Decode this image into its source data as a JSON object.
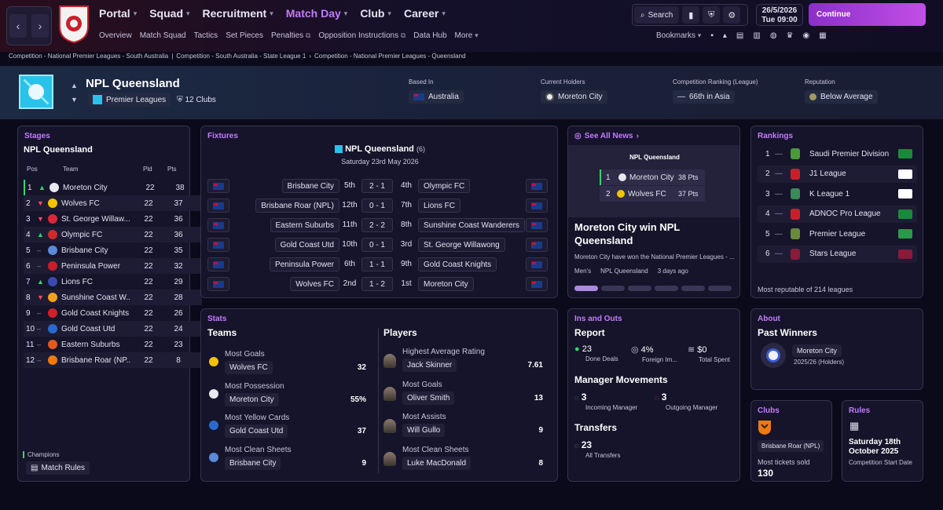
{
  "nav": {
    "back": "‹",
    "forward": "›",
    "main": [
      "Portal",
      "Squad",
      "Recruitment",
      "Match Day",
      "Club",
      "Career"
    ],
    "active": "Match Day",
    "sub": [
      "Overview",
      "Match Squad",
      "Tactics",
      "Set Pieces",
      "Penalties",
      "Opposition Instructions",
      "Data Hub",
      "More"
    ],
    "search_label": "Search",
    "date": "26/5/2026",
    "day_time": "Tue",
    "time": "09:00",
    "continue_label": "Continue",
    "bookmarks_label": "Bookmarks"
  },
  "breadcrumb": [
    "Competition - National Premier Leagues - South Australia",
    "Competition - South Australia - State League 1",
    "Competition - National Premier Leagues - Queensland"
  ],
  "header": {
    "name": "NPL Queensland",
    "type": "Premier Leagues",
    "clubs": "12 Clubs",
    "based_in_label": "Based In",
    "based_in": "Australia",
    "holders_label": "Current Holders",
    "holders": "Moreton City",
    "ranking_label": "Competition Ranking (League)",
    "ranking": "66th in Asia",
    "reputation_label": "Reputation",
    "reputation": "Below Average",
    "ranking_dash": "—"
  },
  "stages": {
    "title": "Stages",
    "league": "NPL Queensland",
    "cols": {
      "pos": "Pos",
      "team": "Team",
      "pld": "Pld",
      "pts": "Pts"
    },
    "rows": [
      {
        "pos": "1",
        "move": "up",
        "team": "Moreton City",
        "pld": "22",
        "pts": "38",
        "color": "#e8e8f0"
      },
      {
        "pos": "2",
        "move": "down",
        "team": "Wolves FC",
        "pld": "22",
        "pts": "37",
        "color": "#f2c400"
      },
      {
        "pos": "3",
        "move": "down",
        "team": "St. George Willaw...",
        "pld": "22",
        "pts": "36",
        "color": "#d8283a"
      },
      {
        "pos": "4",
        "move": "up",
        "team": "Olympic FC",
        "pld": "22",
        "pts": "36",
        "color": "#cf2a2a"
      },
      {
        "pos": "5",
        "move": "same",
        "team": "Brisbane City",
        "pld": "22",
        "pts": "35",
        "color": "#5a8ad8"
      },
      {
        "pos": "6",
        "move": "same",
        "team": "Peninsula Power",
        "pld": "22",
        "pts": "32",
        "color": "#c8202a"
      },
      {
        "pos": "7",
        "move": "up",
        "team": "Lions FC",
        "pld": "22",
        "pts": "29",
        "color": "#3a4ab0"
      },
      {
        "pos": "8",
        "move": "down",
        "team": "Sunshine Coast W...",
        "pld": "22",
        "pts": "28",
        "color": "#f0a020"
      },
      {
        "pos": "9",
        "move": "same",
        "team": "Gold Coast Knights",
        "pld": "22",
        "pts": "26",
        "color": "#d0202a"
      },
      {
        "pos": "10",
        "move": "same",
        "team": "Gold Coast Utd",
        "pld": "22",
        "pts": "24",
        "color": "#2a6ad0"
      },
      {
        "pos": "11",
        "move": "same",
        "team": "Eastern Suburbs",
        "pld": "22",
        "pts": "23",
        "color": "#e05a20"
      },
      {
        "pos": "12",
        "move": "same",
        "team": "Brisbane Roar (NP...",
        "pld": "22",
        "pts": "8",
        "color": "#f07a10"
      }
    ],
    "champions": "Champions",
    "match_rules": "Match Rules"
  },
  "fixtures": {
    "title": "Fixtures",
    "comp": "NPL Queensland",
    "count": "(6)",
    "date": "Saturday 23rd May 2026",
    "rows": [
      {
        "home": "Brisbane City",
        "hpos": "5th",
        "score": "2 - 1",
        "apos": "4th",
        "away": "Olympic FC"
      },
      {
        "home": "Brisbane Roar (NPL)",
        "hpos": "12th",
        "score": "0 - 1",
        "apos": "7th",
        "away": "Lions FC"
      },
      {
        "home": "Eastern Suburbs",
        "hpos": "11th",
        "score": "2 - 2",
        "apos": "8th",
        "away": "Sunshine Coast Wanderers"
      },
      {
        "home": "Gold Coast Utd",
        "hpos": "10th",
        "score": "0 - 1",
        "apos": "3rd",
        "away": "St. George Willawong"
      },
      {
        "home": "Peninsula Power",
        "hpos": "6th",
        "score": "1 - 1",
        "apos": "9th",
        "away": "Gold Coast Knights"
      },
      {
        "home": "Wolves FC",
        "hpos": "2nd",
        "score": "1 - 2",
        "apos": "1st",
        "away": "Moreton City"
      }
    ]
  },
  "news": {
    "see_all": "See All News",
    "table_title": "NPL Queensland",
    "t1_pos": "1",
    "t1_team": "Moreton City",
    "t1_pts": "38 Pts",
    "t2_pos": "2",
    "t2_team": "Wolves FC",
    "t2_pts": "37 Pts",
    "headline": "Moreton City win NPL Queensland",
    "summary": "Moreton City have won the National Premier Leagues - ...",
    "tag1": "Men's",
    "tag2": "NPL Queensland",
    "age": "3 days ago"
  },
  "rankings": {
    "title": "Rankings",
    "rows": [
      {
        "n": "1",
        "name": "Saudi Premier Division",
        "logo": "#4a9a3a",
        "flag": "#1a8a3a"
      },
      {
        "n": "2",
        "name": "J1 League",
        "logo": "#c8202a",
        "flag": "#ffffff"
      },
      {
        "n": "3",
        "name": "K League 1",
        "logo": "#3a8a5a",
        "flag": "#ffffff"
      },
      {
        "n": "4",
        "name": "ADNOC Pro League",
        "logo": "#c8202a",
        "flag": "#1a8a3a"
      },
      {
        "n": "5",
        "name": "Premier League",
        "logo": "#6a8a3a",
        "flag": "#2a9a4a"
      },
      {
        "n": "6",
        "name": "Stars League",
        "logo": "#8a1a3a",
        "flag": "#8a1a3a"
      }
    ],
    "dash": "—",
    "footer": "Most reputable of 214 leagues"
  },
  "stats": {
    "title": "Stats",
    "teams_h": "Teams",
    "players_h": "Players",
    "teams": [
      {
        "label": "Most Goals",
        "name": "Wolves FC",
        "val": "32",
        "color": "#f2c400"
      },
      {
        "label": "Most Possession",
        "name": "Moreton City",
        "val": "55%",
        "color": "#e8e8f0"
      },
      {
        "label": "Most Yellow Cards",
        "name": "Gold Coast Utd",
        "val": "37",
        "color": "#2a6ad0"
      },
      {
        "label": "Most Clean Sheets",
        "name": "Brisbane City",
        "val": "9",
        "color": "#5a8ad8"
      }
    ],
    "players": [
      {
        "label": "Highest Average Rating",
        "name": "Jack Skinner",
        "val": "7.61"
      },
      {
        "label": "Most Goals",
        "name": "Oliver Smith",
        "val": "13"
      },
      {
        "label": "Most Assists",
        "name": "Will Gullo",
        "val": "9"
      },
      {
        "label": "Most Clean Sheets",
        "name": "Luke MacDonald",
        "val": "8"
      }
    ]
  },
  "insouts": {
    "title": "Ins and Outs",
    "report": "Report",
    "done_deals": "23",
    "done_deals_l": "Done Deals",
    "foreign": "4%",
    "foreign_l": "Foreign Im...",
    "spent": "$0",
    "spent_l": "Total Spent",
    "mm": "Manager Movements",
    "incoming": "3",
    "incoming_l": "Incoming Manager",
    "outgoing": "3",
    "outgoing_l": "Outgoing Manager",
    "transfers": "Transfers",
    "all": "23",
    "all_l": "All Transfers"
  },
  "about": {
    "title": "About",
    "past": "Past Winners",
    "winner": "Moreton City",
    "season": "2025/26 (Holders)"
  },
  "clubs": {
    "title": "Clubs",
    "club": "Brisbane Roar (NPL)",
    "label": "Most tickets sold",
    "val": "130"
  },
  "rules": {
    "title": "Rules",
    "date": "Saturday 18th October 2025",
    "label": "Competition Start Date"
  }
}
